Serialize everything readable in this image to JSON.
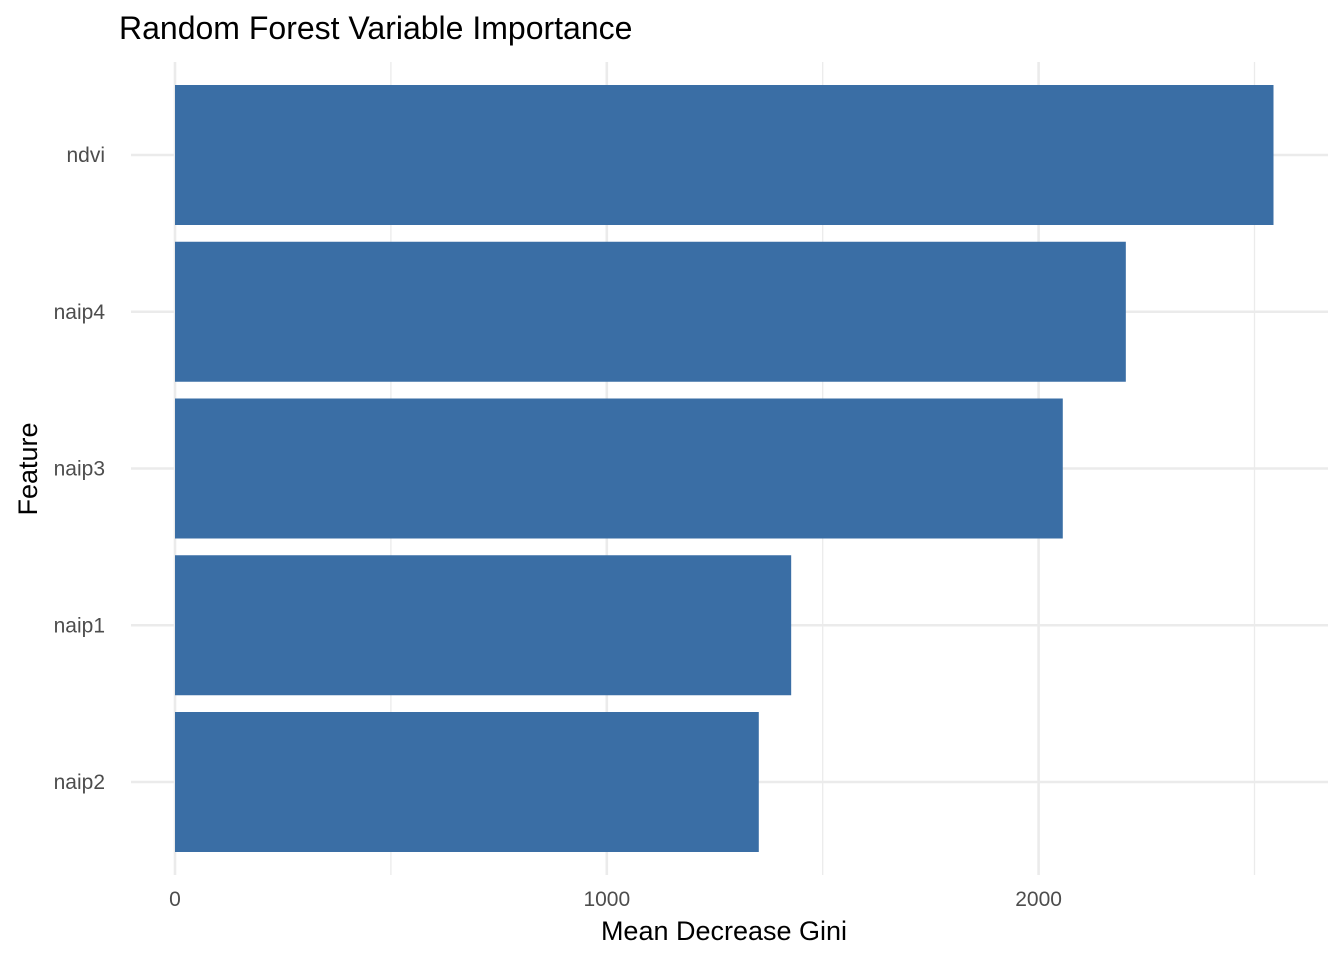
{
  "chart_data": {
    "type": "bar",
    "orientation": "horizontal",
    "title": "Random Forest Variable Importance",
    "xlabel": "Mean Decrease Gini",
    "ylabel": "Feature",
    "categories": [
      "naip2",
      "naip1",
      "naip3",
      "naip4",
      "ndvi"
    ],
    "values": [
      1352,
      1427,
      2056,
      2202,
      2544
    ],
    "xlim": [
      0,
      2600
    ],
    "xticks": [
      0,
      1000,
      2000
    ],
    "xtick_labels": [
      "0",
      "1000",
      "2000"
    ],
    "bar_color": "#3A6EA5",
    "grid": true,
    "legend": "none"
  }
}
